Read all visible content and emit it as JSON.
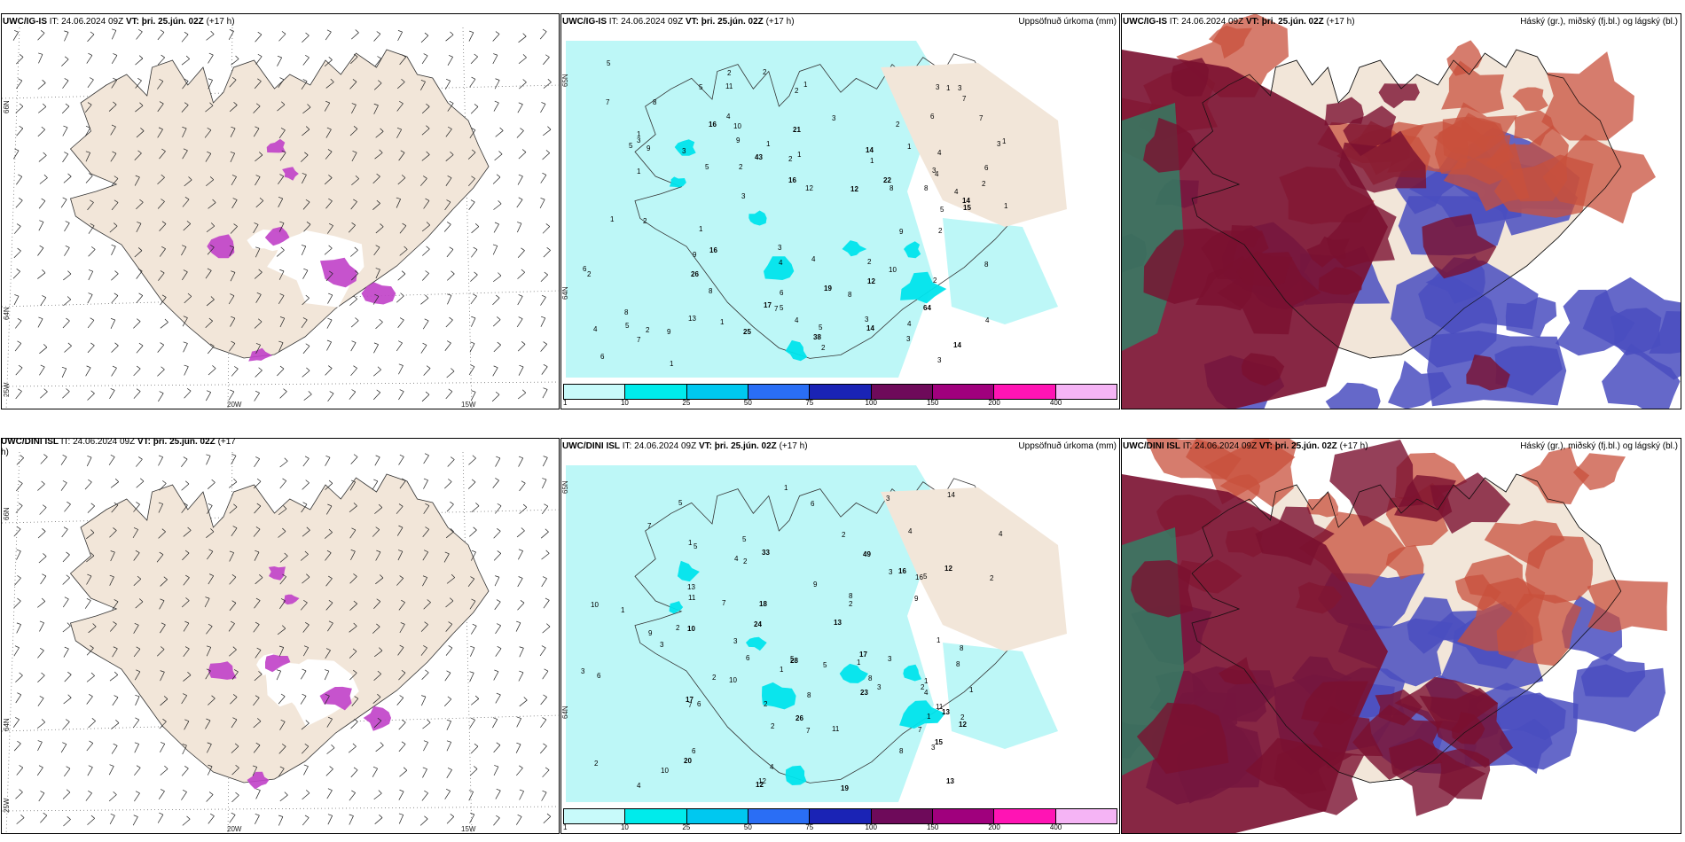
{
  "panels": {
    "p1": {
      "model": "UWC/IG-IS",
      "it": "IT: 24.06.2024 09Z",
      "vt": "VT: þri. 25.jún. 02Z",
      "lead": "(+17 h)",
      "lat_labels": [
        "66N",
        "64N",
        "25W"
      ],
      "lon_labels": [
        "20W",
        "15W"
      ]
    },
    "p2": {
      "model": "UWC/IG-IS",
      "it": "IT: 24.06.2024 09Z",
      "vt": "VT: þri. 25.jún. 02Z",
      "lead": "(+17 h)",
      "right_title": "Uppsöfnuð úrkoma (mm)",
      "lat_labels": [
        "65N",
        "64N"
      ],
      "numbers_plain": [
        "3",
        "4",
        "5",
        "1",
        "5",
        "3",
        "1",
        "4",
        "8",
        "6",
        "7",
        "9",
        "10",
        "5",
        "2",
        "3",
        "2",
        "2",
        "4",
        "1",
        "8",
        "9",
        "9",
        "7",
        "8",
        "6",
        "5",
        "2",
        "3",
        "4",
        "4",
        "2",
        "3",
        "2",
        "1",
        "3",
        "1",
        "1",
        "2",
        "1",
        "5",
        "9",
        "8",
        "10",
        "13",
        "11",
        "12",
        "7",
        "8",
        "3",
        "9",
        "4",
        "2",
        "4",
        "6",
        "3",
        "2",
        "6",
        "3",
        "5",
        "6",
        "2",
        "1",
        "1",
        "2",
        "8",
        "7",
        "5",
        "3",
        "7",
        "4",
        "2",
        "5",
        "8",
        "1",
        "1",
        "2",
        "1",
        "3",
        "1",
        "1",
        "4",
        "3",
        "2",
        "4"
      ],
      "numbers_bold": [
        "14",
        "16",
        "12",
        "25",
        "17",
        "16",
        "14",
        "22",
        "12",
        "26",
        "14",
        "16",
        "14",
        "38",
        "64",
        "15",
        "19",
        "43",
        "21"
      ]
    },
    "p3": {
      "model": "UWC/IG-IS",
      "it": "IT: 24.06.2024 09Z",
      "vt": "VT: þri. 25.jún. 02Z",
      "lead": "(+17 h)",
      "right_title": "Háský (gr.), miðský (fj.bl.) og lágský (bl.)"
    },
    "p4": {
      "model": "UWC/DINI ISL",
      "it": "IT: 24.06.2024 09Z",
      "vt": "VT: þri. 25.jún. 02Z",
      "lead": "(+17",
      "lead2": "h)",
      "lat_labels": [
        "66N",
        "64N",
        "25W"
      ],
      "lon_labels": [
        "20W",
        "15W"
      ]
    },
    "p5": {
      "model": "UWC/DINI ISL",
      "it": "IT: 24.06.2024 09Z",
      "vt": "VT: þri. 25.jún. 02Z",
      "lead": "(+17 h)",
      "right_title": "Uppsöfnuð úrkoma (mm)",
      "lat_labels": [
        "65N",
        "64N"
      ],
      "numbers_plain": [
        "4",
        "5",
        "6",
        "3",
        "6",
        "5",
        "7",
        "8",
        "10",
        "9",
        "14",
        "11",
        "8",
        "12",
        "13",
        "16",
        "2",
        "10",
        "7",
        "11",
        "8",
        "5",
        "4",
        "3",
        "7",
        "9",
        "11",
        "6",
        "3",
        "2",
        "1",
        "2",
        "6",
        "4",
        "5",
        "8",
        "10",
        "7",
        "2",
        "1",
        "3",
        "1",
        "1",
        "4",
        "3",
        "2",
        "1",
        "6",
        "2",
        "3",
        "5",
        "4",
        "2",
        "1",
        "7",
        "8",
        "5",
        "3",
        "2",
        "1",
        "4",
        "2",
        "3",
        "1",
        "2",
        "9",
        "8",
        "1",
        "2"
      ],
      "numbers_bold": [
        "16",
        "15",
        "13",
        "10",
        "13",
        "12",
        "13",
        "24",
        "20",
        "17",
        "18",
        "12",
        "19",
        "33",
        "12",
        "17",
        "49",
        "28",
        "26",
        "23"
      ]
    },
    "p6": {
      "model": "UWC/DINI ISL",
      "it": "IT: 24.06.2024 09Z",
      "vt": "VT: þri. 25.jún. 02Z",
      "lead": "(+17 h)",
      "right_title": "Háský (gr.), miðský (fj.bl.) og lágský (bl.)"
    }
  },
  "colorbar": {
    "labels": [
      "1",
      "10",
      "25",
      "50",
      "75",
      "100",
      "150",
      "200",
      "400"
    ],
    "colors": [
      "#c8fafa",
      "#00ebeb",
      "#00c8f0",
      "#2a6ef5",
      "#1a23b5",
      "#6e0a5a",
      "#a0007d",
      "#ff14b4",
      "#f5b4f5"
    ]
  },
  "colors": {
    "land": "#f2e6d9",
    "precip_light": "#bdf7f7",
    "precip_mid": "#00e4ec",
    "precip_heavy": "#00bfe8",
    "magenta": "#c040c8",
    "cloud_high": "#7a1030",
    "cloud_mid": "#c8503c",
    "cloud_low": "#4a4ec0"
  }
}
